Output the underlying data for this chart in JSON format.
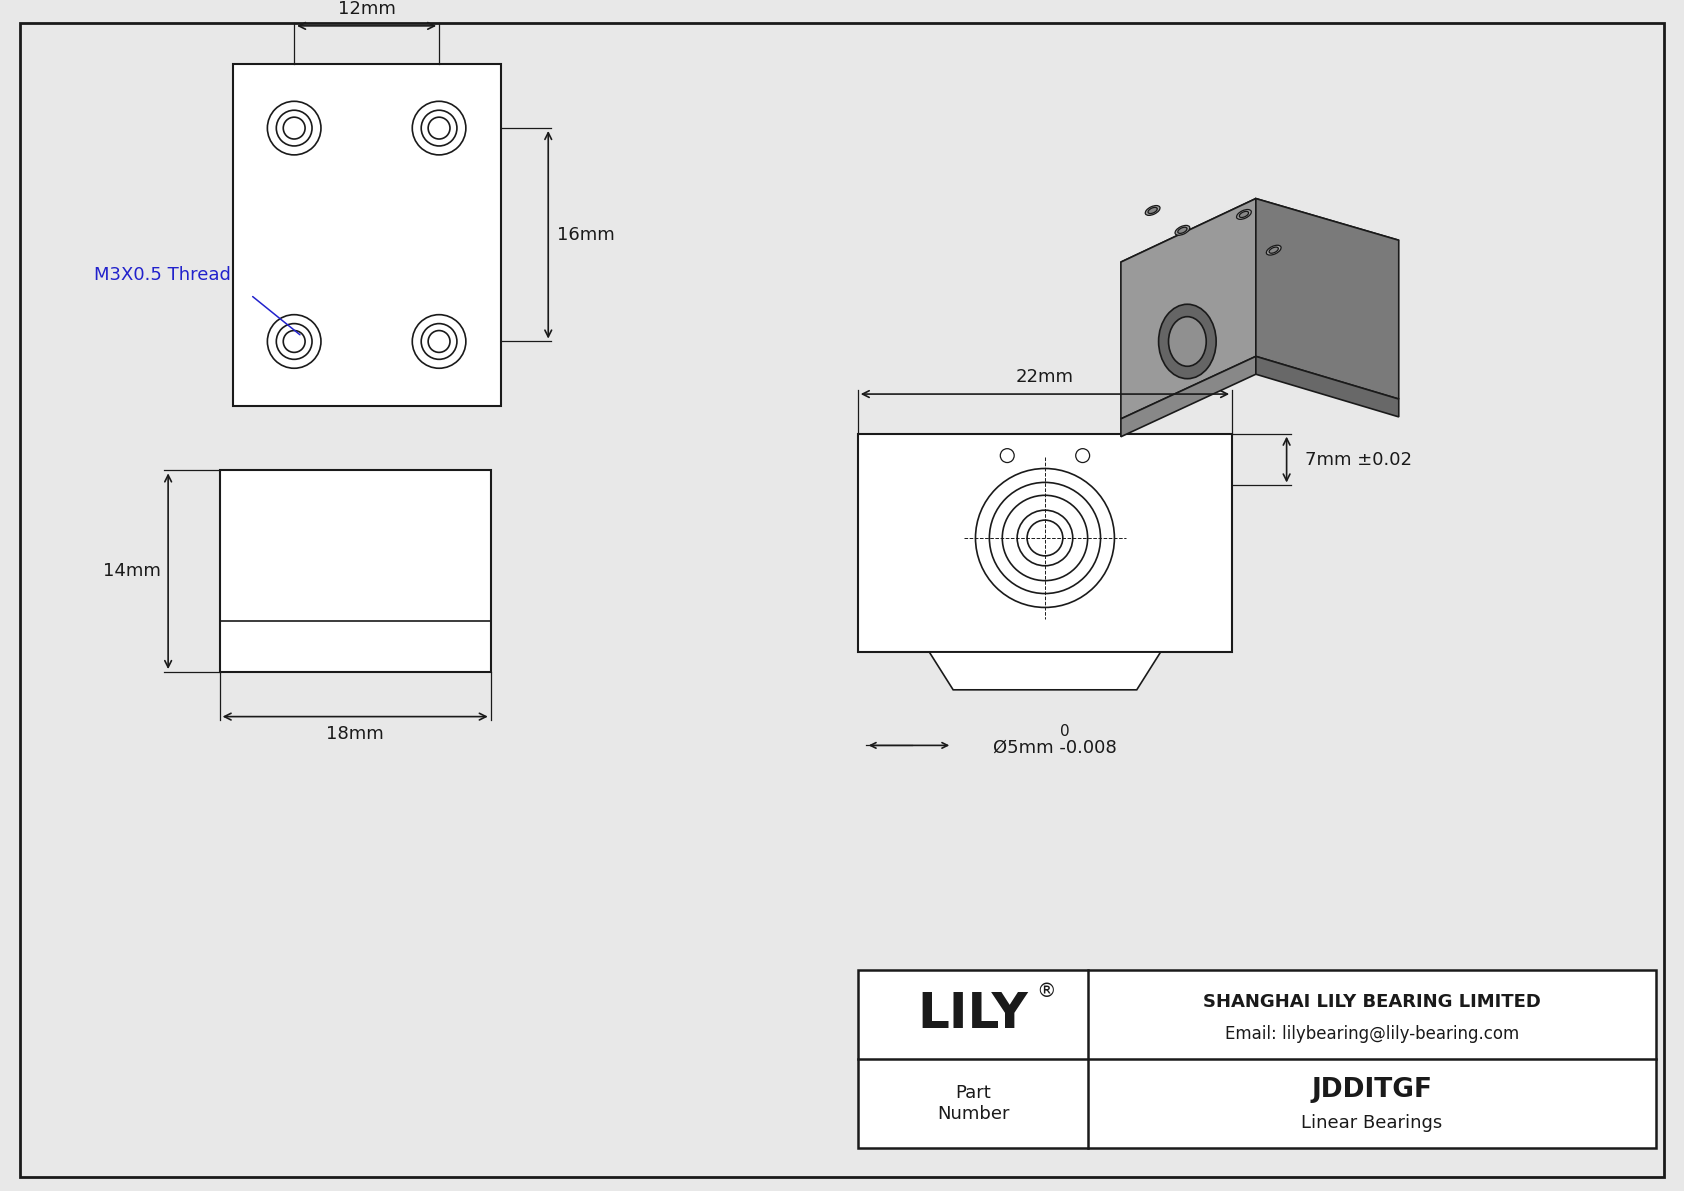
{
  "bg_color": "#e8e8e8",
  "line_color": "#1a1a1a",
  "blue_color": "#2222cc",
  "white": "#ffffff",
  "gray_light": "#b8b8b8",
  "gray_mid": "#9a9a9a",
  "gray_dark": "#7a7a7a",
  "company": "SHANGHAI LILY BEARING LIMITED",
  "email": "Email: lilybearing@lily-bearing.com",
  "part_label": "Part\nNumber",
  "part_name": "JDDITGF",
  "part_type": "Linear Bearings",
  "dim_12mm": "12mm",
  "dim_16mm": "16mm",
  "dim_14mm": "14mm",
  "dim_18mm": "18mm",
  "dim_22mm": "22mm",
  "dim_7mm": "7mm ±0.02",
  "dim_bore_line1": "0",
  "dim_bore_line2": "Ø5mm -0.008",
  "thread_label": "M3X0.5 Thread"
}
